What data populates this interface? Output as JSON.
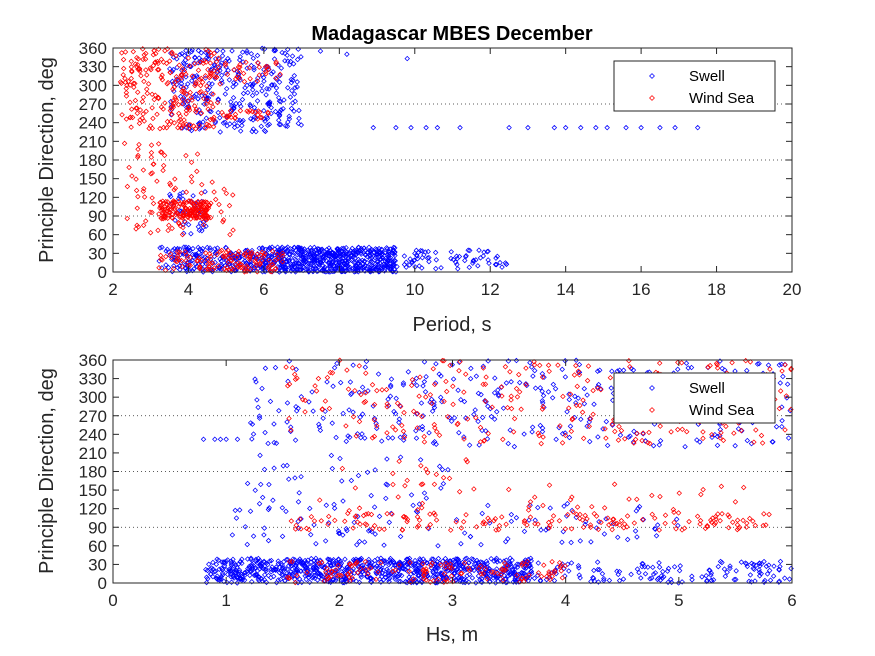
{
  "title": "Madagascar MBES December",
  "colors": {
    "swell": "#0000ff",
    "wind_sea": "#ff0000",
    "axis": "#262626"
  },
  "chart_data": [
    {
      "type": "scatter",
      "title": "Madagascar MBES December",
      "xlabel": "Period, s",
      "ylabel": "Principle Direction, deg",
      "xlim": [
        2,
        20
      ],
      "ylim": [
        0,
        360
      ],
      "xticks": [
        "2",
        "4",
        "6",
        "8",
        "10",
        "12",
        "14",
        "16",
        "18",
        "20"
      ],
      "yticks": [
        "0",
        "30",
        "60",
        "90",
        "120",
        "150",
        "180",
        "210",
        "240",
        "270",
        "300",
        "330",
        "360"
      ],
      "grid_y": [
        90,
        180,
        270
      ],
      "legend": {
        "entries": [
          "Swell",
          "Wind Sea"
        ],
        "location": "top-right"
      },
      "marker": "diamond",
      "series": [
        {
          "name": "Swell",
          "color": "#0000ff",
          "clusters": [
            {
              "x": [
                5,
                9.5
              ],
              "y": [
                0,
                40
              ],
              "n": 650
            },
            {
              "x": [
                9.5,
                12.5
              ],
              "y": [
                5,
                35
              ],
              "n": 70
            },
            {
              "x": [
                3.2,
                5
              ],
              "y": [
                0,
                40
              ],
              "n": 120
            },
            {
              "x": [
                3.5,
                7
              ],
              "y": [
                225,
                360
              ],
              "n": 320
            },
            {
              "x": [
                3.5,
                4.5
              ],
              "y": [
                60,
                130
              ],
              "n": 40
            }
          ],
          "points": [
            {
              "x": 8.9,
              "y": 232
            },
            {
              "x": 9.5,
              "y": 232
            },
            {
              "x": 9.9,
              "y": 232
            },
            {
              "x": 10.3,
              "y": 232
            },
            {
              "x": 10.6,
              "y": 232
            },
            {
              "x": 11.2,
              "y": 232
            },
            {
              "x": 12.5,
              "y": 232
            },
            {
              "x": 13.0,
              "y": 232
            },
            {
              "x": 13.7,
              "y": 232
            },
            {
              "x": 14.0,
              "y": 232
            },
            {
              "x": 14.4,
              "y": 232
            },
            {
              "x": 14.8,
              "y": 232
            },
            {
              "x": 15.1,
              "y": 232
            },
            {
              "x": 15.6,
              "y": 232
            },
            {
              "x": 16.0,
              "y": 232
            },
            {
              "x": 16.5,
              "y": 232
            },
            {
              "x": 16.9,
              "y": 232
            },
            {
              "x": 17.5,
              "y": 232
            },
            {
              "x": 8.2,
              "y": 350
            },
            {
              "x": 9.8,
              "y": 343
            },
            {
              "x": 7.5,
              "y": 355
            }
          ]
        },
        {
          "name": "Wind Sea",
          "color": "#ff0000",
          "clusters": [
            {
              "x": [
                2.2,
                4.8
              ],
              "y": [
                230,
                360
              ],
              "n": 230
            },
            {
              "x": [
                3.2,
                4.6
              ],
              "y": [
                85,
                115
              ],
              "n": 160
            },
            {
              "x": [
                2.3,
                5.2
              ],
              "y": [
                60,
                150
              ],
              "n": 60
            },
            {
              "x": [
                3.2,
                6.5
              ],
              "y": [
                0,
                35
              ],
              "n": 120
            },
            {
              "x": [
                2.3,
                4.3
              ],
              "y": [
                130,
                210
              ],
              "n": 30
            },
            {
              "x": [
                4.5,
                6.5
              ],
              "y": [
                300,
                340
              ],
              "n": 35
            },
            {
              "x": [
                4.8,
                6.2
              ],
              "y": [
                245,
                260
              ],
              "n": 25
            }
          ],
          "points": []
        }
      ]
    },
    {
      "type": "scatter",
      "xlabel": "Hs, m",
      "ylabel": "Principle Direction, deg",
      "xlim": [
        0,
        6
      ],
      "ylim": [
        0,
        360
      ],
      "xticks": [
        "0",
        "1",
        "2",
        "3",
        "4",
        "5",
        "6"
      ],
      "yticks": [
        "0",
        "30",
        "60",
        "90",
        "120",
        "150",
        "180",
        "210",
        "240",
        "270",
        "300",
        "330",
        "360"
      ],
      "grid_y": [
        90,
        180,
        270
      ],
      "legend": {
        "entries": [
          "Swell",
          "Wind Sea"
        ],
        "location": "top-right"
      },
      "marker": "diamond",
      "series": [
        {
          "name": "Swell",
          "color": "#0000ff",
          "clusters": [
            {
              "x": [
                0.8,
                3.7
              ],
              "y": [
                0,
                40
              ],
              "n": 850
            },
            {
              "x": [
                3.7,
                6
              ],
              "y": [
                0,
                35
              ],
              "n": 140
            },
            {
              "x": [
                1.2,
                6
              ],
              "y": [
                220,
                360
              ],
              "n": 380
            },
            {
              "x": [
                1.0,
                5.0
              ],
              "y": [
                60,
                130
              ],
              "n": 110
            },
            {
              "x": [
                1.1,
                3.0
              ],
              "y": [
                130,
                210
              ],
              "n": 40
            }
          ],
          "points": [
            {
              "x": 0.8,
              "y": 232
            },
            {
              "x": 0.9,
              "y": 232
            },
            {
              "x": 1.0,
              "y": 232
            },
            {
              "x": 1.1,
              "y": 232
            },
            {
              "x": 0.95,
              "y": 232
            }
          ]
        },
        {
          "name": "Wind Sea",
          "color": "#ff0000",
          "clusters": [
            {
              "x": [
                1.5,
                5.8
              ],
              "y": [
                85,
                115
              ],
              "n": 160
            },
            {
              "x": [
                1.5,
                6
              ],
              "y": [
                225,
                360
              ],
              "n": 280
            },
            {
              "x": [
                1.5,
                4.0
              ],
              "y": [
                0,
                35
              ],
              "n": 130
            },
            {
              "x": [
                1.8,
                5.6
              ],
              "y": [
                115,
                160
              ],
              "n": 35
            },
            {
              "x": [
                2.0,
                3.2
              ],
              "y": [
                150,
                200
              ],
              "n": 15
            }
          ],
          "points": [
            {
              "x": 5.5,
              "y": 131
            },
            {
              "x": 5.9,
              "y": 310
            },
            {
              "x": 5.95,
              "y": 302
            }
          ]
        }
      ]
    }
  ]
}
